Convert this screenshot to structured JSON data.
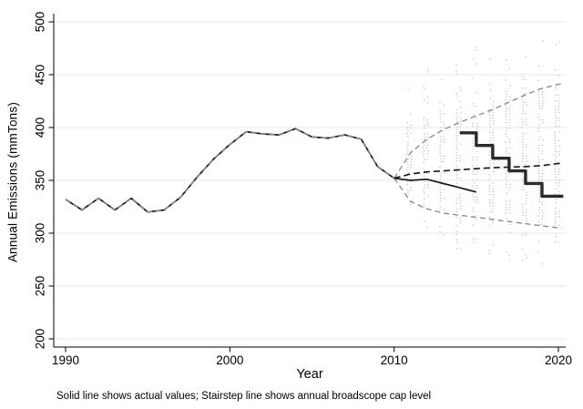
{
  "chart_data": {
    "type": "line",
    "title": "",
    "xlabel": "Year",
    "ylabel": "Annual Emissions (mmTons)",
    "footnote": "Solid line shows actual values; Stairstep line shows annual broadscope cap level",
    "x_ticks": [
      1990,
      2000,
      2010,
      2020
    ],
    "y_ticks": [
      200,
      250,
      300,
      350,
      400,
      450,
      500
    ],
    "xlim": [
      1989.3,
      2020.45
    ],
    "ylim": [
      200,
      500
    ],
    "grid": "horizontal-only",
    "legend": "none",
    "colors": {
      "actual_line": "#1a1a1a",
      "band_dashed": "#8e8e8e",
      "central_dashed": "#141414",
      "cap_step": "#2b2b2b",
      "gridline": "#e9e9e9",
      "dots": "#c8c8c8",
      "axis": "#000000"
    },
    "series": [
      {
        "name": "actual-emissions",
        "style": "solid-black",
        "x": [
          1990,
          1991,
          1992,
          1993,
          1994,
          1995,
          1996,
          1997,
          1998,
          1999,
          2000,
          2001,
          2002,
          2003,
          2004,
          2005,
          2006,
          2007,
          2008,
          2009,
          2010,
          2011,
          2012,
          2013,
          2014,
          2015
        ],
        "values": [
          332,
          322,
          333,
          322,
          333,
          320,
          322,
          334,
          353,
          370,
          384,
          396,
          394,
          393,
          399,
          391,
          390,
          393,
          389,
          363,
          352,
          350,
          351,
          347,
          343,
          339
        ]
      },
      {
        "name": "insample-fit-overlay",
        "style": "dashed-gray",
        "x": [
          1990,
          1991,
          1992,
          1993,
          1994,
          1995,
          1996,
          1997,
          1998,
          1999,
          2000,
          2001,
          2002,
          2003,
          2004,
          2005,
          2006,
          2007,
          2008,
          2009,
          2010
        ],
        "values": [
          332,
          322,
          333,
          322,
          333,
          320,
          322,
          334,
          353,
          370,
          384,
          396,
          394,
          393,
          399,
          391,
          390,
          393,
          389,
          363,
          352
        ]
      },
      {
        "name": "forecast-upper-band",
        "style": "dashed-gray",
        "x": [
          2010,
          2011,
          2012,
          2013,
          2014,
          2015,
          2016,
          2017,
          2018,
          2019,
          2020
        ],
        "values": [
          352,
          376,
          389,
          398,
          405,
          411,
          417,
          424,
          431,
          437,
          441
        ],
        "extend_to_x": 2020.2
      },
      {
        "name": "forecast-lower-band",
        "style": "dashed-gray",
        "x": [
          2010,
          2011,
          2012,
          2013,
          2014,
          2015,
          2016,
          2017,
          2018,
          2019,
          2020
        ],
        "values": [
          352,
          330,
          323,
          319,
          317,
          315,
          313,
          311,
          309,
          307,
          305
        ],
        "extend_to_x": 2020.2
      },
      {
        "name": "forecast-central",
        "style": "dashed-black",
        "x": [
          2010,
          2011,
          2012,
          2013,
          2014,
          2015,
          2016,
          2017,
          2018,
          2019,
          2020
        ],
        "values": [
          352,
          356,
          358,
          359,
          360,
          361,
          362,
          362.5,
          363,
          364,
          366
        ],
        "extend_to_x": 2020.3
      },
      {
        "name": "broadscope-cap-stairstep",
        "style": "step-thick-black",
        "step": true,
        "x": [
          2014,
          2015,
          2016,
          2017,
          2018,
          2019
        ],
        "values": [
          395,
          383,
          371,
          359,
          347,
          335
        ],
        "extend_to_x": 2020.3
      }
    ],
    "simulation_dots": {
      "description": "vertical columns of tiny gray dots (simulated outcomes) per forecast year",
      "columns": [
        {
          "x": 2011,
          "lo": 325,
          "hi": 445,
          "dense_lo": 332,
          "dense_hi": 400
        },
        {
          "x": 2012,
          "lo": 300,
          "hi": 458,
          "dense_lo": 325,
          "dense_hi": 410
        },
        {
          "x": 2013,
          "lo": 290,
          "hi": 464,
          "dense_lo": 321,
          "dense_hi": 415
        },
        {
          "x": 2014,
          "lo": 283,
          "hi": 470,
          "dense_lo": 318,
          "dense_hi": 420
        },
        {
          "x": 2015,
          "lo": 278,
          "hi": 476,
          "dense_lo": 316,
          "dense_hi": 424
        },
        {
          "x": 2016,
          "lo": 274,
          "hi": 481,
          "dense_lo": 314,
          "dense_hi": 428
        },
        {
          "x": 2017,
          "lo": 271,
          "hi": 485,
          "dense_lo": 312,
          "dense_hi": 431
        },
        {
          "x": 2018,
          "lo": 269,
          "hi": 488,
          "dense_lo": 310,
          "dense_hi": 434
        },
        {
          "x": 2019,
          "lo": 267,
          "hi": 490,
          "dense_lo": 308,
          "dense_hi": 437
        },
        {
          "x": 2020,
          "lo": 265,
          "hi": 492,
          "dense_lo": 306,
          "dense_hi": 440
        }
      ]
    }
  }
}
